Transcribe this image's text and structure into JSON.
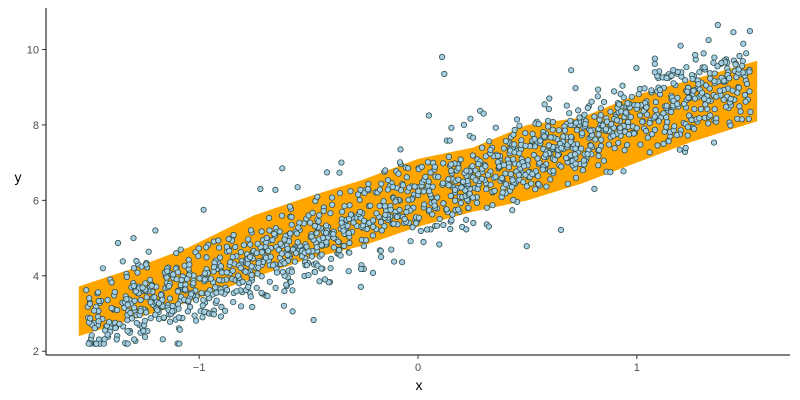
{
  "chart_data": {
    "type": "scatter",
    "title": "",
    "xlabel": "x",
    "ylabel": "y",
    "xlim": [
      -1.7,
      1.7
    ],
    "ylim": [
      1.9,
      11.1
    ],
    "x_ticks": [
      {
        "value": -1,
        "label": "−1"
      },
      {
        "value": 0,
        "label": "0"
      },
      {
        "value": 1,
        "label": "1"
      }
    ],
    "y_ticks": [
      {
        "value": 2,
        "label": "2"
      },
      {
        "value": 4,
        "label": "4"
      },
      {
        "value": 6,
        "label": "6"
      },
      {
        "value": 8,
        "label": "8"
      },
      {
        "value": 10,
        "label": "10"
      }
    ],
    "grid": false,
    "legend": "none",
    "band": {
      "color": "#FFA500",
      "points": [
        {
          "x": -1.55,
          "lower": 2.4,
          "upper": 3.72
        },
        {
          "x": -1.3,
          "lower": 2.85,
          "upper": 4.2
        },
        {
          "x": -1.05,
          "lower": 3.3,
          "upper": 4.75
        },
        {
          "x": -0.75,
          "lower": 3.95,
          "upper": 5.6
        },
        {
          "x": -0.5,
          "lower": 4.45,
          "upper": 6.1
        },
        {
          "x": -0.25,
          "lower": 4.8,
          "upper": 6.55
        },
        {
          "x": 0.0,
          "lower": 5.3,
          "upper": 7.1
        },
        {
          "x": 0.25,
          "lower": 5.7,
          "upper": 7.4
        },
        {
          "x": 0.5,
          "lower": 6.0,
          "upper": 8.0
        },
        {
          "x": 0.75,
          "lower": 6.45,
          "upper": 8.2
        },
        {
          "x": 1.0,
          "lower": 7.0,
          "upper": 8.8
        },
        {
          "x": 1.25,
          "lower": 7.55,
          "upper": 9.2
        },
        {
          "x": 1.55,
          "lower": 8.1,
          "upper": 9.7
        }
      ]
    },
    "series": [
      {
        "fill": "#A6CEE3",
        "stroke": "#2F4F4F",
        "trend_intercept": 6.0,
        "trend_slope": 2.2,
        "noise_sd": 0.55,
        "n_points": 1500,
        "x_range": [
          -1.52,
          1.52
        ],
        "outliers": [
          {
            "x": 0.11,
            "y": 9.8
          },
          {
            "x": 0.12,
            "y": 9.35
          },
          {
            "x": 1.37,
            "y": 10.65
          },
          {
            "x": -0.62,
            "y": 6.85
          },
          {
            "x": -1.2,
            "y": 5.2
          },
          {
            "x": -0.98,
            "y": 5.75
          },
          {
            "x": -0.35,
            "y": 7.0
          },
          {
            "x": -0.08,
            "y": 7.35
          },
          {
            "x": 0.05,
            "y": 8.25
          },
          {
            "x": 0.6,
            "y": 8.7
          },
          {
            "x": 0.7,
            "y": 9.45
          },
          {
            "x": 1.2,
            "y": 10.1
          },
          {
            "x": -1.3,
            "y": 5.0
          },
          {
            "x": -0.72,
            "y": 6.3
          },
          {
            "x": 1.5,
            "y": 9.9
          },
          {
            "x": -1.47,
            "y": 2.2
          },
          {
            "x": -1.44,
            "y": 4.2
          },
          {
            "x": 1.48,
            "y": 8.15
          },
          {
            "x": 0.3,
            "y": 8.3
          },
          {
            "x": -0.55,
            "y": 6.35
          }
        ]
      }
    ]
  }
}
